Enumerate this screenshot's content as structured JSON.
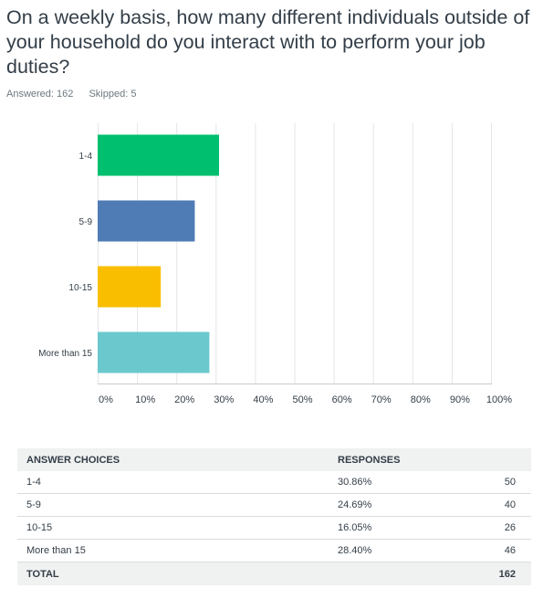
{
  "question": {
    "title": "On a weekly basis, how many different individuals outside of your household do you interact with to perform your job duties?",
    "answered": "Answered: 162",
    "skipped": "Skipped: 5"
  },
  "chart_data": {
    "type": "bar",
    "orientation": "horizontal",
    "categories": [
      "1-4",
      "5-9",
      "10-15",
      "More than 15"
    ],
    "values": [
      30.86,
      24.69,
      16.05,
      28.4
    ],
    "xlim": [
      0,
      100
    ],
    "xticks": [
      "0%",
      "10%",
      "20%",
      "30%",
      "40%",
      "50%",
      "60%",
      "70%",
      "80%",
      "90%",
      "100%"
    ],
    "colors": [
      "#00bf6f",
      "#507cb6",
      "#f9be00",
      "#6bc8cd"
    ],
    "grid": true
  },
  "table": {
    "headers": [
      "ANSWER CHOICES",
      "RESPONSES",
      ""
    ],
    "rows": [
      {
        "choice": "1-4",
        "percent": "30.86%",
        "count": "50"
      },
      {
        "choice": "5-9",
        "percent": "24.69%",
        "count": "40"
      },
      {
        "choice": "10-15",
        "percent": "16.05%",
        "count": "26"
      },
      {
        "choice": "More than 15",
        "percent": "28.40%",
        "count": "46"
      }
    ],
    "total_label": "TOTAL",
    "total_count": "162"
  }
}
